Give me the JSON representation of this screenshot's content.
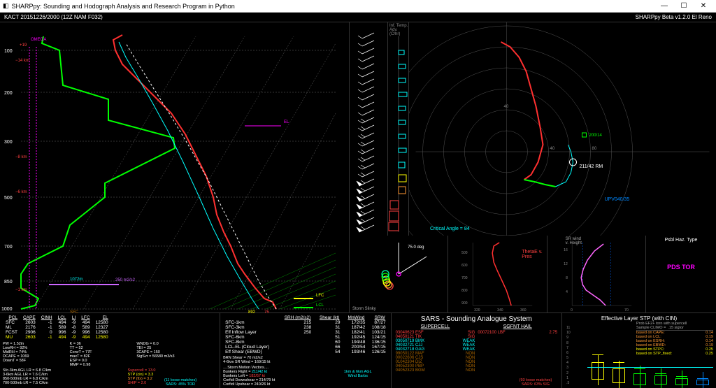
{
  "window": {
    "title": "SHARPpy: Sounding and Hodograph Analysis and Research Program in Python"
  },
  "header": {
    "left": "KACT   20151226/2000   (12Z   NAM   F032)",
    "right": "SHARPpy Beta v1.2.0 El Reno"
  },
  "skewt": {
    "pressures": [
      100,
      200,
      300,
      500,
      700,
      850,
      1000
    ],
    "annot": {
      "omega": "OMEGA",
      "sfc": "SFC",
      "el": "EL",
      "lfc": "LFC",
      "lcl": "LCL",
      "h1072": "1072m",
      "eff250": "250 m2/s2",
      "t892": "892",
      "t75": "75",
      "p19": "+19",
      "m14": "−14 km",
      "m8": "−8 km",
      "m6": "−6 km",
      "m1": "−1 km",
      "m1b": "−1 km"
    }
  },
  "hodo": {
    "critical": "Critical Angle = 84",
    "rm": "211/42 RM",
    "lm": "200/14",
    "up": "UPV040/35",
    "ticks": [
      "80",
      "40",
      "-40",
      "-80"
    ]
  },
  "slinky": {
    "title": "Storm Slinky",
    "deg": "75.0 deg"
  },
  "theta": {
    "title": "ThetaE v.\nPres",
    "y": [
      "900",
      "800",
      "700",
      "600",
      "500"
    ],
    "x": [
      "320",
      "340",
      "360"
    ]
  },
  "srwind": {
    "title": "SR wind\nv. Height",
    "y": [
      "16",
      "12",
      "8",
      "4"
    ],
    "x": [
      "0",
      "70"
    ]
  },
  "haz": {
    "title": "Psbl Haz. Type",
    "value": "PDS TOR"
  },
  "indices": {
    "cols": [
      "PCL",
      "CAPE",
      "CINH",
      "LCL",
      "LI",
      "LFC",
      "EL"
    ],
    "rows": [
      [
        "SFC",
        "2603",
        "-1",
        "494",
        "-9",
        "494",
        "12580"
      ],
      [
        "ML",
        "2176",
        "-1",
        "589",
        "-8",
        "589",
        "12327"
      ],
      [
        "FCST",
        "2906",
        "0",
        "996",
        "-9",
        "996",
        "12580"
      ],
      [
        "MU",
        "2603",
        "-1",
        "494",
        "-9",
        "494",
        "12580"
      ]
    ],
    "left": [
      "PW = 1.52in",
      "LowRH = 92%",
      "MidRH = 74%",
      "DCAPE = 1069",
      "DownT = 58F"
    ],
    "mid": [
      "K = 36",
      "TT = 52",
      "ConvT = 77F",
      "maxT = 82F",
      "ESP = 0.0",
      "MMP = 0.98"
    ],
    "right": [
      "WNDG = 0.0",
      "TEI = 25",
      "3CAPE = 150",
      " ",
      "SigSvr = 56580 m3/s3"
    ],
    "lapse": [
      "Sfc-3km AGL LR = 6.8 C/km",
      "3-6km AGL LR = 7.6 C/km",
      "850-500mb LR = 6.8 C/km",
      "700-500mb LR = 7.5 C/km"
    ],
    "comp": [
      {
        "l": "Supercell = 13.0",
        "c": "#ff4040"
      },
      {
        "l": "STP (cin) = 3.3",
        "c": "#ffff00"
      },
      {
        "l": "STP (fix) = 3.2",
        "c": "#ff9933"
      },
      {
        "l": "SHIP = 2.0",
        "c": "#ff4040"
      }
    ]
  },
  "kin": {
    "hcols": [
      "",
      "SRH (m2/s2)",
      "Shear (kt)",
      "MnWind",
      "SRW"
    ],
    "rows": [
      [
        "SFC-1km",
        "215",
        "29",
        "172/35",
        "87/27"
      ],
      [
        "SFC-3km",
        "238",
        "31",
        "187/42",
        "108/18"
      ],
      [
        "Eff Inflow Layer",
        "250",
        "31",
        "182/41",
        "103/21"
      ],
      [
        "",
        "",
        "",
        "",
        ""
      ],
      [
        "SFC-6km",
        "",
        "51",
        "192/45",
        "124/15"
      ],
      [
        "SFC-8km",
        "",
        "60",
        "194/48",
        "136/15"
      ],
      [
        "LCL-EL (Cloud Layer)",
        "",
        "66",
        "200/54",
        "167/15"
      ],
      [
        "Eff Shear (EBWD)",
        "",
        "54",
        "193/46",
        "126/15"
      ]
    ],
    "brn": "BRN Shear =             70 m2/s2",
    "srw": "4-6km SR Wind =        169/15 kt",
    "storm_hdr": "....Storm Motion Vectors....",
    "bunkers_r": {
      "l": "Bunkers Right =",
      "v": "211/42 kt",
      "c": "#00ffff"
    },
    "bunkers_l": {
      "l": "Bunkers Left =",
      "v": "182/57 kt",
      "c": "#ff4040"
    },
    "corfidi_d": {
      "l": "Corfidi Downshear =",
      "v": "214/79 kt"
    },
    "corfidi_u": {
      "l": "Corfidi Upshear =",
      "v": "240/26 kt"
    },
    "legend": "1km & 6km AGL\nWind Barbs"
  },
  "sars": {
    "title": "SARS - Sounding Analogue System",
    "left_h": "SUPERCELL",
    "right_h": "SGFNT HAIL",
    "left": [
      {
        "d": "03040623 ESF",
        "t": "SIG",
        "c": "#ff4040"
      },
      {
        "d": "04050121 TIK",
        "t": "SIG",
        "c": "#ff4040"
      },
      {
        "d": "03050719 BMX",
        "t": "WEAK",
        "c": "#00ffff"
      },
      {
        "d": "04032721 CJJ",
        "t": "WEAK",
        "c": "#00ffff"
      },
      {
        "d": "04032718 GAG",
        "t": "WEAK",
        "c": "#00ffff"
      },
      {
        "d": "99050122 MAF",
        "t": "NON",
        "c": "#aa6600"
      },
      {
        "d": "00022606 CJS",
        "t": "NON",
        "c": "#aa6600"
      },
      {
        "d": "01042304 DIZ",
        "t": "NON",
        "c": "#aa6600"
      },
      {
        "d": "04052300 PBP",
        "t": "NON",
        "c": "#aa6600"
      },
      {
        "d": "04052323 BGM",
        "t": "NON",
        "c": "#aa6600"
      }
    ],
    "right": [
      {
        "d": "00072100 LBF",
        "t": "2.75",
        "c": "#ff4040"
      }
    ],
    "left_foot": {
      "a": "(11 loose matches)",
      "b": "SARS: 45% TOR",
      "c": "#00ffff"
    },
    "right_foot": {
      "a": "(93 loose matches)",
      "b": "SARS: 63% SIG",
      "c": "#ff4040"
    }
  },
  "stp": {
    "title": "Effective Layer STP (with CIN)",
    "prob_h": "Prob EF2+ torn with supercell\nSample CLIMO =  .15 sigtor",
    "probs": [
      {
        "l": "based on CAPE:",
        "v": "0.14",
        "c": "#ff9933"
      },
      {
        "l": "based on LCL:",
        "v": "0.19",
        "c": "#ff9933"
      },
      {
        "l": "based on ESRH:",
        "v": "0.14",
        "c": "#ff9933"
      },
      {
        "l": "based on EBWD:",
        "v": "0.19",
        "c": "#ff9933"
      },
      {
        "l": "based on STPC:",
        "v": "0.25",
        "c": "#ffff00"
      },
      {
        "l": "based on STP_fixed:",
        "v": "0.25",
        "c": "#ffff00"
      }
    ],
    "yticks": [
      "11",
      "10",
      "9",
      "8",
      "7",
      "6",
      "5",
      "4",
      "3",
      "2",
      "1",
      ".5"
    ],
    "xcats": [
      "EF4+",
      "EF3",
      "EF2",
      "EF1",
      "EF0",
      "NONTOR"
    ],
    "actual": 3.3
  }
}
